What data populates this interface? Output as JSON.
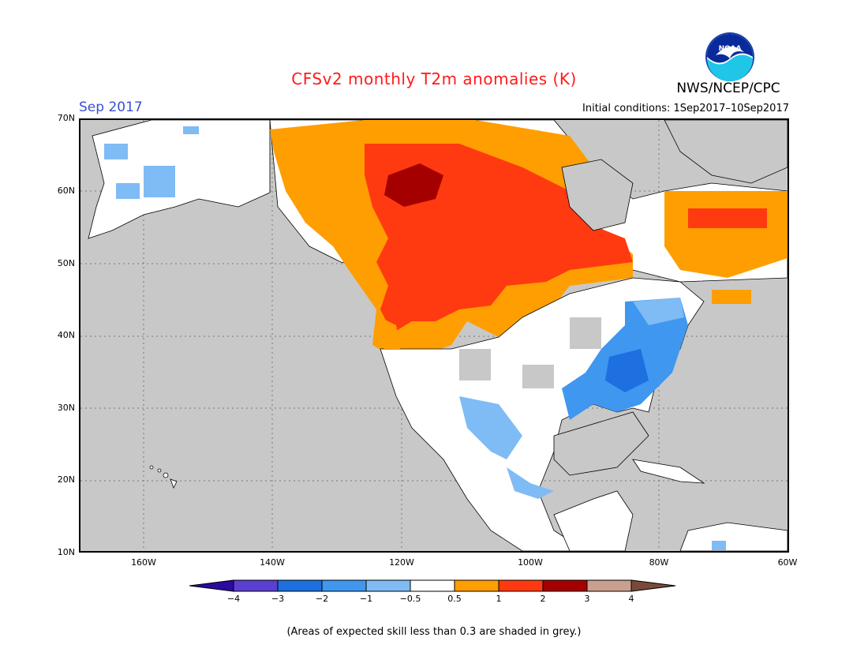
{
  "header": {
    "title": "CFSv2 monthly T2m anomalies (K)",
    "month": "Sep 2017",
    "agency": "NWS/NCEP/CPC",
    "initial_conditions": "Initial conditions: 1Sep2017–10Sep2017",
    "logo_text": "NOAA"
  },
  "map": {
    "lat_labels": [
      "70N",
      "60N",
      "50N",
      "40N",
      "30N",
      "20N",
      "10N"
    ],
    "lon_labels": [
      "160W",
      "140W",
      "120W",
      "100W",
      "80W",
      "60W"
    ],
    "lon_range": [
      -170,
      -60
    ],
    "lat_range": [
      10,
      70
    ],
    "region": "North America"
  },
  "legend": {
    "tick_labels": [
      "−4",
      "−3",
      "−2",
      "−1",
      "−0.5",
      "0.5",
      "1",
      "2",
      "3",
      "4"
    ],
    "colors": [
      "#2a0aa0",
      "#5a3fd0",
      "#1e6fe0",
      "#3f97f0",
      "#7fbbf5",
      "#ffffff",
      "#ff9e00",
      "#ff3a10",
      "#a50000",
      "#c9a08f",
      "#7a4a38"
    ],
    "bins": [
      "< −4",
      "−4 to −3",
      "−3 to −2",
      "−2 to −1",
      "−1 to −0.5",
      "−0.5 to 0.5",
      "0.5 to 1",
      "1 to 2",
      "2 to 3",
      "3 to 4",
      "> 4"
    ]
  },
  "note": "(Areas of expected skill less than 0.3 are shaded in grey.)"
}
